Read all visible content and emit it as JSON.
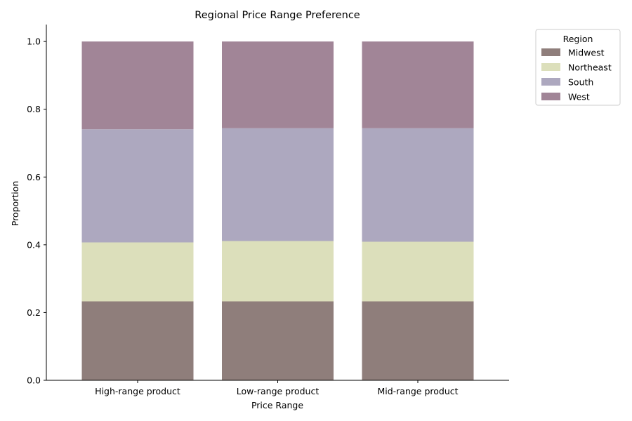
{
  "chart_data": {
    "type": "bar",
    "stacked": true,
    "title": "Regional Price Range Preference",
    "xlabel": "Price Range",
    "ylabel": "Proportion",
    "ylim": [
      0,
      1.05
    ],
    "yticks": [
      "0.0",
      "0.2",
      "0.4",
      "0.6",
      "0.8",
      "1.0"
    ],
    "categories": [
      "High-range product",
      "Low-range product",
      "Mid-range product"
    ],
    "series": [
      {
        "name": "Midwest",
        "color": "#8f7e7b",
        "values": [
          0.233,
          0.233,
          0.233
        ]
      },
      {
        "name": "Northeast",
        "color": "#dcdfbb",
        "values": [
          0.174,
          0.178,
          0.176
        ]
      },
      {
        "name": "South",
        "color": "#ada8bf",
        "values": [
          0.334,
          0.333,
          0.335
        ]
      },
      {
        "name": "West",
        "color": "#a18597",
        "values": [
          0.259,
          0.256,
          0.256
        ]
      }
    ],
    "legend": {
      "title": "Region",
      "position": "outside-top-right"
    },
    "grid": false
  }
}
